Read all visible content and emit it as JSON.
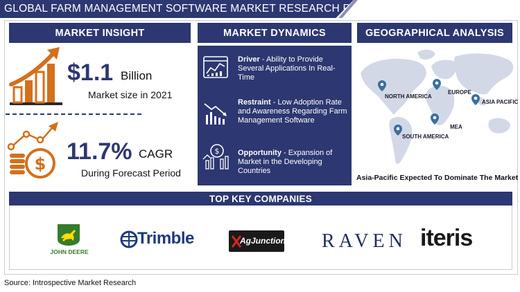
{
  "header": {
    "title": "GLOBAL FARM MANAGEMENT SOFTWARE MARKET RESEARCH REPORT"
  },
  "insight": {
    "heading": "MARKET INSIGHT",
    "market_value": "$1.1",
    "market_unit": "Billion",
    "market_caption": "Market size in 2021",
    "cagr_value": "11.7%",
    "cagr_unit": "CAGR",
    "cagr_caption": "During Forecast Period"
  },
  "dynamics": {
    "heading": "MARKET DYNAMICS",
    "items": [
      {
        "label": "Driver",
        "text": " - Ability to Provide Several Applications In Real-Time"
      },
      {
        "label": "Restraint",
        "text": " - Low Adoption Rate and Awareness Regarding Farm Management Software"
      },
      {
        "label": "Opportunity",
        "text": " - Expansion of Market in the Developing Countries"
      }
    ]
  },
  "geography": {
    "heading": "GEOGRAPHICAL ANALYSIS",
    "regions": [
      "NORTH AMERICA",
      "EUROPE",
      "ASIA PACIFIC",
      "MEA",
      "SOUTH AMERICA"
    ],
    "caption": "Asia-Pacific Expected To Dominate The Market"
  },
  "companies": {
    "heading": "TOP KEY COMPANIES",
    "logos": [
      "JOHN DEERE",
      "Trimble",
      "AgJunction",
      "RAVEN",
      "iteris"
    ]
  },
  "source": "Source: Introspective Market Research",
  "colors": {
    "navy": "#2d3771",
    "orange": "#d4701c",
    "pin": "#3a6f9e",
    "map": "#d3d8e6"
  }
}
